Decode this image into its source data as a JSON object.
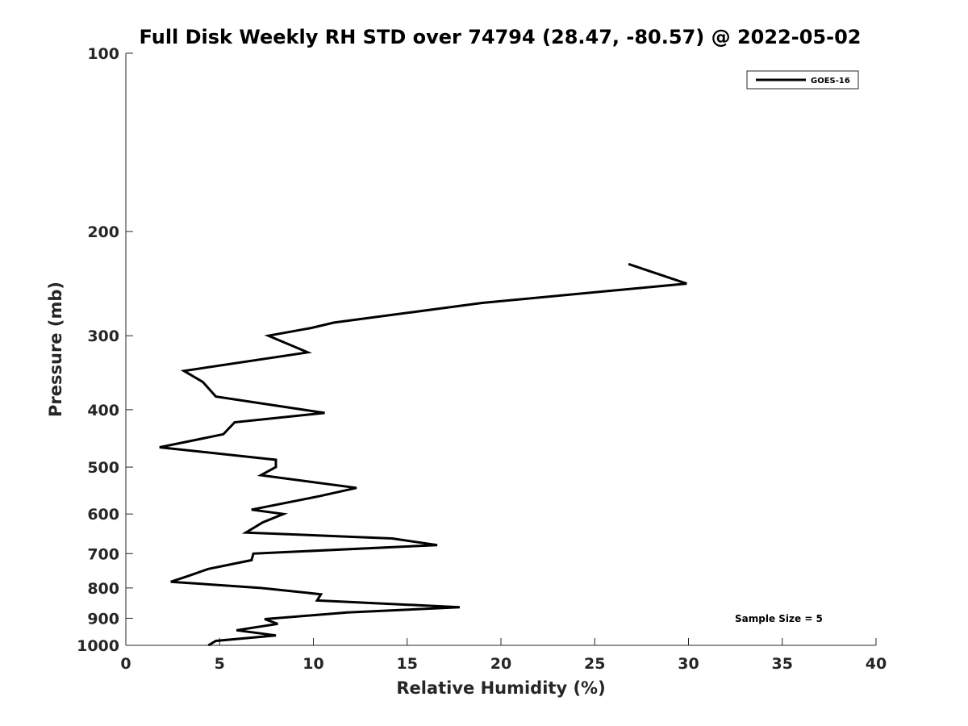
{
  "chart_data": {
    "type": "line",
    "title": "Full Disk Weekly RH STD over 74794 (28.47, -80.57) @ 2022-05-02",
    "xlabel": "Relative Humidity (%)",
    "ylabel": "Pressure (mb)",
    "xlim": [
      0,
      40
    ],
    "ylim": [
      1000,
      100
    ],
    "yscale": "log",
    "xticks": [
      0,
      5,
      10,
      15,
      20,
      25,
      30,
      35,
      40
    ],
    "xtick_labels": [
      "0",
      "5",
      "10",
      "15",
      "20",
      "25",
      "30",
      "35",
      "40"
    ],
    "yticks": [
      100,
      200,
      300,
      400,
      500,
      600,
      700,
      800,
      900,
      1000
    ],
    "ytick_labels": [
      "100",
      "200",
      "300",
      "400",
      "500",
      "600",
      "700",
      "800",
      "900",
      "1000"
    ],
    "grid": false,
    "legend_position": "top-right",
    "colors": {
      "line": "#000000",
      "axis": "#262626"
    },
    "series": [
      {
        "name": "GOES-16",
        "points": [
          {
            "x": 26.8,
            "p": 227
          },
          {
            "x": 29.9,
            "p": 245
          },
          {
            "x": 19.0,
            "p": 264
          },
          {
            "x": 11.1,
            "p": 285
          },
          {
            "x": 9.9,
            "p": 291
          },
          {
            "x": 7.6,
            "p": 300
          },
          {
            "x": 9.7,
            "p": 320
          },
          {
            "x": 3.1,
            "p": 344
          },
          {
            "x": 4.1,
            "p": 359
          },
          {
            "x": 4.8,
            "p": 380
          },
          {
            "x": 10.6,
            "p": 405
          },
          {
            "x": 5.8,
            "p": 420
          },
          {
            "x": 5.2,
            "p": 440
          },
          {
            "x": 1.8,
            "p": 463
          },
          {
            "x": 8.0,
            "p": 486
          },
          {
            "x": 8.0,
            "p": 500
          },
          {
            "x": 7.2,
            "p": 516
          },
          {
            "x": 12.3,
            "p": 542
          },
          {
            "x": 10.3,
            "p": 560
          },
          {
            "x": 6.7,
            "p": 590
          },
          {
            "x": 8.4,
            "p": 600
          },
          {
            "x": 7.3,
            "p": 620
          },
          {
            "x": 6.4,
            "p": 645
          },
          {
            "x": 14.2,
            "p": 660
          },
          {
            "x": 16.6,
            "p": 677
          },
          {
            "x": 6.8,
            "p": 700
          },
          {
            "x": 6.7,
            "p": 718
          },
          {
            "x": 4.4,
            "p": 743
          },
          {
            "x": 3.4,
            "p": 762
          },
          {
            "x": 2.4,
            "p": 781
          },
          {
            "x": 7.2,
            "p": 800
          },
          {
            "x": 10.4,
            "p": 820
          },
          {
            "x": 10.2,
            "p": 840
          },
          {
            "x": 17.8,
            "p": 862
          },
          {
            "x": 11.8,
            "p": 880
          },
          {
            "x": 7.4,
            "p": 903
          },
          {
            "x": 8.1,
            "p": 920
          },
          {
            "x": 5.9,
            "p": 943
          },
          {
            "x": 8.0,
            "p": 962
          },
          {
            "x": 4.8,
            "p": 983
          },
          {
            "x": 4.4,
            "p": 1000
          }
        ]
      }
    ],
    "annotation": "Sample Size = 5"
  }
}
